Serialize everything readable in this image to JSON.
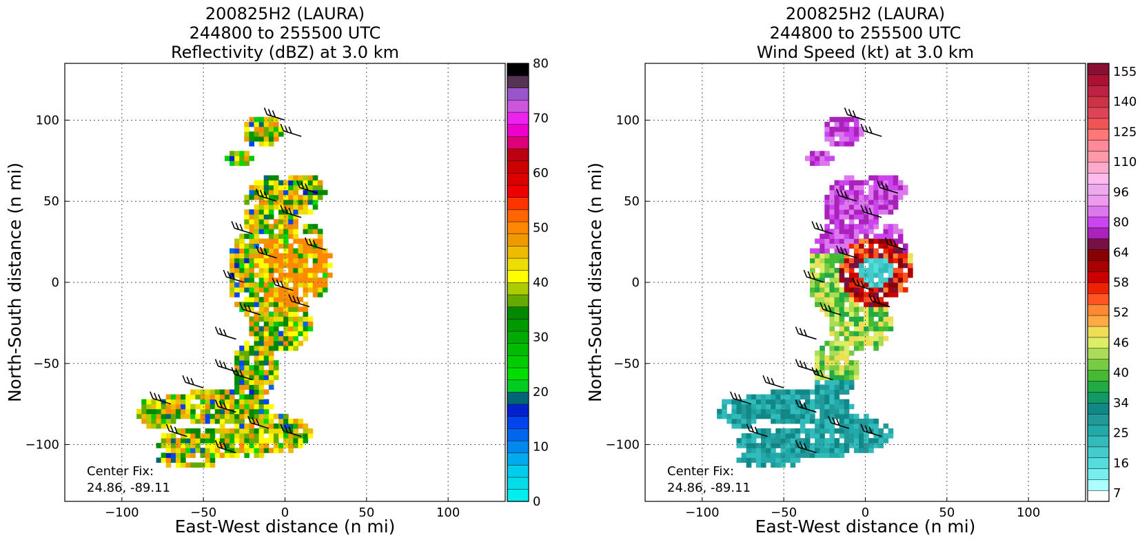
{
  "chart_data": [
    {
      "type": "heatmap",
      "title_lines": [
        "200825H2 (LAURA)",
        "244800 to 255500 UTC",
        "Reflectivity (dBZ) at 3.0 km"
      ],
      "xlabel": "East-West distance (n mi)",
      "ylabel": "North-South distance (n mi)",
      "xlim": [
        -135,
        135
      ],
      "ylim": [
        -135,
        135
      ],
      "xticks": [
        -100,
        -50,
        0,
        50,
        100
      ],
      "yticks": [
        -100,
        -50,
        0,
        50,
        100
      ],
      "grid": true,
      "annotation_lines": [
        "Center Fix:",
        "24.86, -89.11"
      ],
      "colorbar": {
        "min": 0,
        "max": 80,
        "step": 2.5,
        "ticks": [
          0,
          10,
          20,
          30,
          40,
          50,
          60,
          70,
          80
        ],
        "colors": [
          "#00eeee",
          "#00dde8",
          "#00ccee",
          "#00aaee",
          "#0088ee",
          "#0066ee",
          "#0044ee",
          "#0022cc",
          "#006677",
          "#00cc22",
          "#00dd00",
          "#00cc00",
          "#00bb00",
          "#00aa00",
          "#009900",
          "#008800",
          "#66aa00",
          "#aacc00",
          "#ffff00",
          "#eedd00",
          "#eebb00",
          "#ee9900",
          "#ff8800",
          "#ff6600",
          "#ff3300",
          "#ee0000",
          "#dd0000",
          "#cc0000",
          "#bb0011",
          "#dd0077",
          "#ee00cc",
          "#ee22ee",
          "#cc55dd",
          "#9955cc",
          "#553355",
          "#000000"
        ]
      }
    },
    {
      "type": "heatmap",
      "title_lines": [
        "200825H2 (LAURA)",
        "244800 to 255500 UTC",
        "Wind Speed (kt) at 3.0 km"
      ],
      "xlabel": "East-West distance (n mi)",
      "ylabel": "North-South distance (n mi)",
      "xlim": [
        -135,
        135
      ],
      "ylim": [
        -135,
        135
      ],
      "xticks": [
        -100,
        -50,
        0,
        50,
        100
      ],
      "yticks": [
        -100,
        -50,
        0,
        50,
        100
      ],
      "grid": true,
      "annotation_lines": [
        "Center Fix:",
        "24.86, -89.11"
      ],
      "colorbar": {
        "ticks": [
          "7",
          "16",
          "25",
          "34",
          "40",
          "46",
          "52",
          "58",
          "64",
          "80",
          "96",
          "110",
          "125",
          "140",
          "155"
        ],
        "colors": [
          "#ffffff",
          "#aaffff",
          "#77eeee",
          "#55dddd",
          "#44cccc",
          "#33bbbb",
          "#22aaaa",
          "#229999",
          "#118888",
          "#119966",
          "#22aa44",
          "#44bb33",
          "#77cc44",
          "#aadd55",
          "#ddee66",
          "#eedd55",
          "#ffaa44",
          "#ff8833",
          "#ff5522",
          "#ee2200",
          "#cc0000",
          "#aa0000",
          "#880000",
          "#771144",
          "#aa22bb",
          "#cc44ee",
          "#dd77ee",
          "#ee99ee",
          "#eeaaee",
          "#ffbbee",
          "#ffaacc",
          "#ff99aa",
          "#ff8899",
          "#ff7777",
          "#ee5555",
          "#dd4455",
          "#cc3344",
          "#bb2244",
          "#aa1133",
          "#881133"
        ]
      }
    }
  ]
}
